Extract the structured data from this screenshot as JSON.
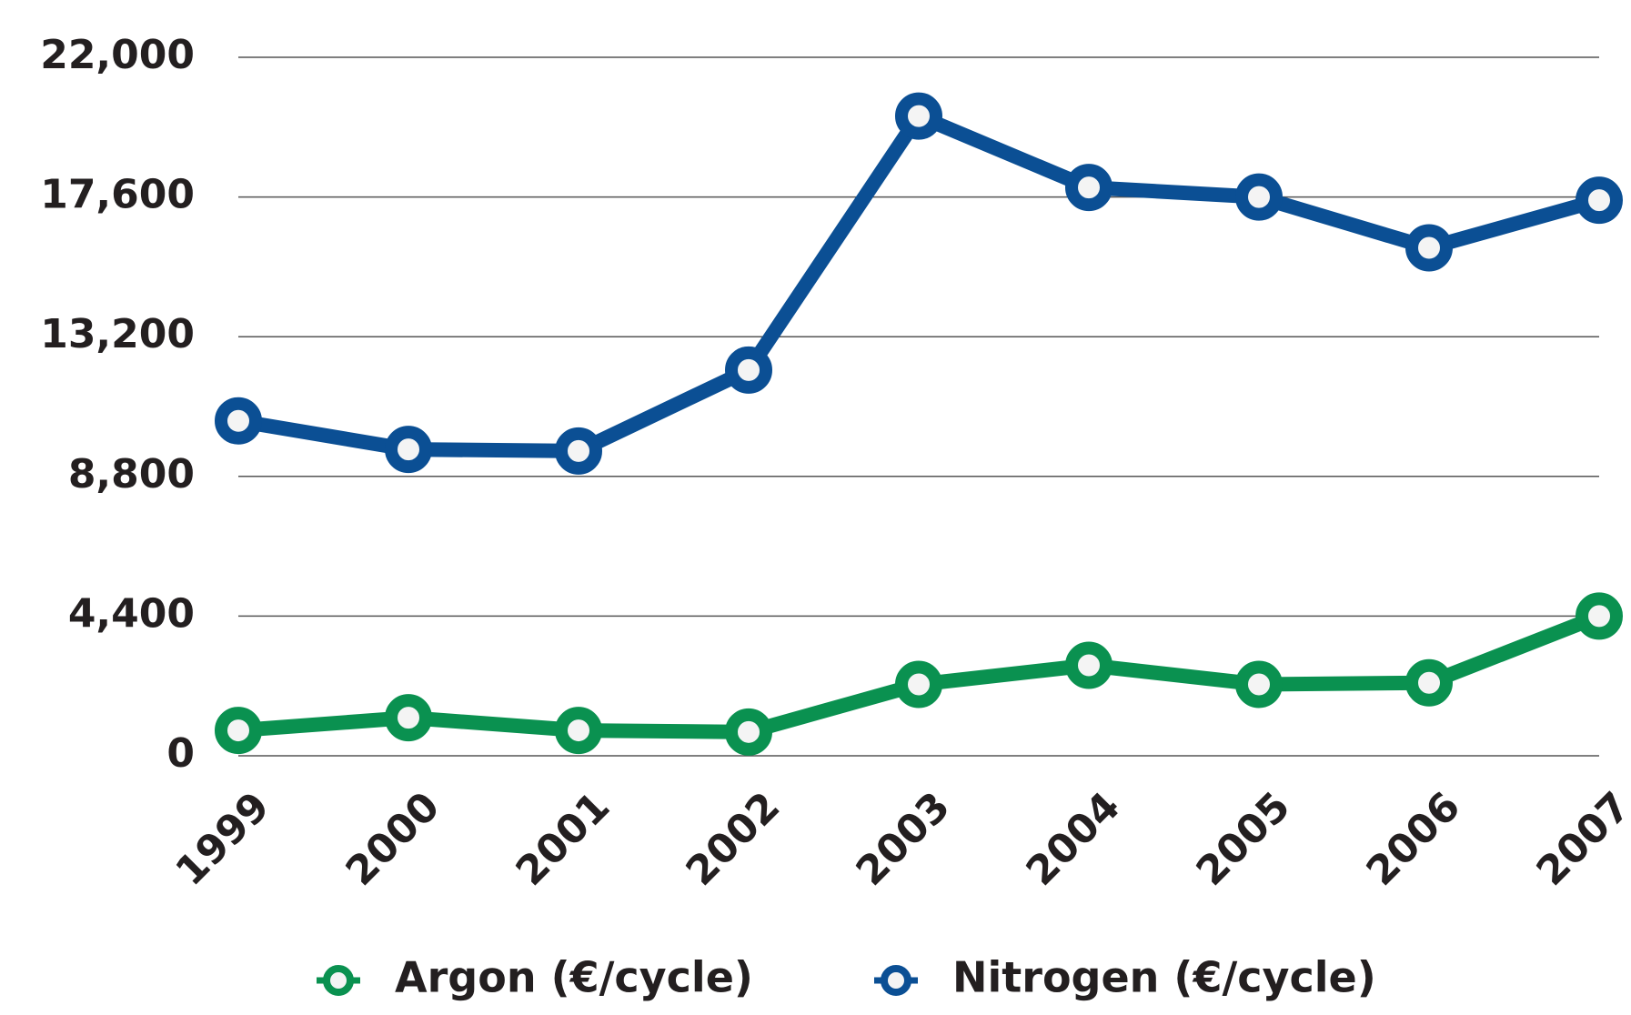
{
  "chart_data": {
    "type": "line",
    "categories": [
      "1999",
      "2000",
      "2001",
      "2002",
      "2003",
      "2004",
      "2005",
      "2006",
      "2007"
    ],
    "series": [
      {
        "name": "Argon (€/cycle)",
        "color": "#0a9150",
        "values": [
          800,
          1200,
          800,
          750,
          2250,
          2850,
          2250,
          2300,
          4400
        ]
      },
      {
        "name": "Nitrogen (€/cycle)",
        "color": "#0b4f94",
        "values": [
          10550,
          9650,
          9600,
          12150,
          20150,
          17900,
          17600,
          16000,
          17500
        ]
      }
    ],
    "ylim": [
      0,
      22000
    ],
    "yticks": [
      0,
      {
        "value": 4400,
        "label": "4,400"
      },
      {
        "value": 8800,
        "label": "8,800"
      },
      {
        "value": 13200,
        "label": "13,200"
      },
      {
        "value": 17600,
        "label": "17,600"
      },
      {
        "value": 22000,
        "label": "22,000"
      }
    ],
    "grid": true,
    "legend": "bottom"
  }
}
